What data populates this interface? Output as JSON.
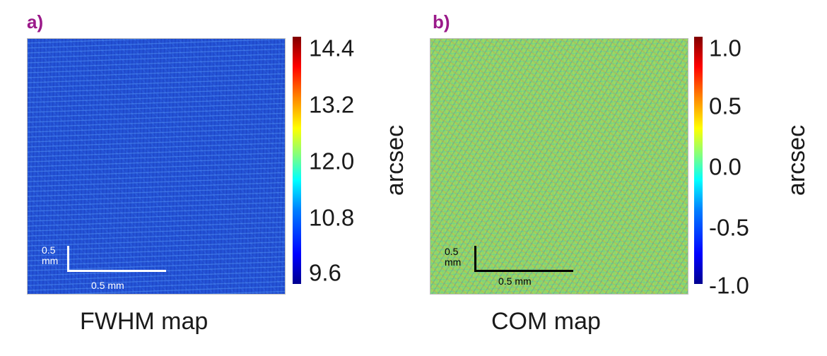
{
  "panels": [
    {
      "label": "a)",
      "caption": "FWHM map",
      "colorbar": {
        "unit": "arcsec",
        "ticks": [
          "14.4",
          "13.2",
          "12.0",
          "10.8",
          "9.6"
        ],
        "min": 9.6,
        "max": 14.4
      },
      "scalebar": {
        "vertical_label": "0.5\nmm",
        "horizontal_label": "0.5 mm",
        "color": "#ffffff"
      }
    },
    {
      "label": "b)",
      "caption": "COM map",
      "colorbar": {
        "unit": "arcsec",
        "ticks": [
          "1.0",
          "0.5",
          "0.0",
          "-0.5",
          "-1.0"
        ],
        "min": -1.0,
        "max": 1.0
      },
      "scalebar": {
        "vertical_label": "0.5\nmm",
        "horizontal_label": "0.5 mm",
        "color": "#000000"
      }
    }
  ],
  "colors": {
    "label": "#9b1a8a",
    "colormap": "jet"
  }
}
